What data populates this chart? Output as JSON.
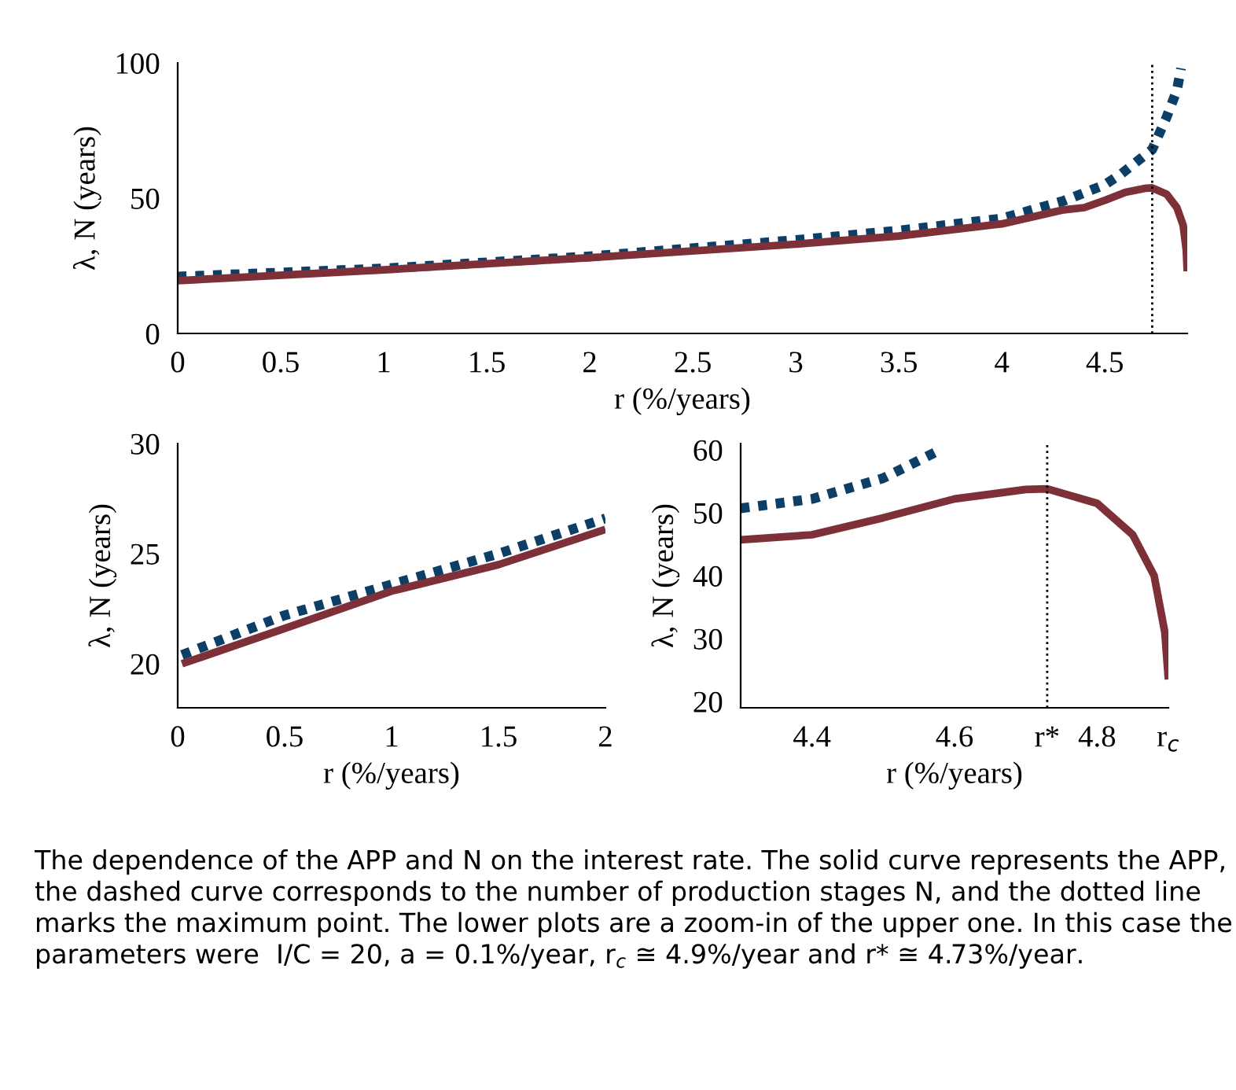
{
  "chart_data": [
    {
      "type": "line",
      "xlabel": "r (%/years)",
      "ylabel": "λ, N (years)",
      "xlim": [
        0,
        4.9
      ],
      "ylim": [
        0,
        100
      ],
      "xticks": [
        0,
        0.5,
        1,
        1.5,
        2,
        2.5,
        3,
        3.5,
        4,
        4.5
      ],
      "yticks": [
        0,
        50,
        100
      ],
      "grid": false,
      "legend": false,
      "series": [
        {
          "color": "#0d3f66",
          "line_style": "dotted",
          "x": [
            0,
            1,
            2,
            3,
            3.5,
            4,
            4.3,
            4.5,
            4.58,
            4.73,
            4.8,
            4.85,
            4.87
          ],
          "values": [
            21,
            24,
            28.5,
            34.5,
            38,
            42.5,
            49,
            55,
            59,
            68,
            80,
            90,
            98
          ]
        },
        {
          "color": "#7d3038",
          "line_style": "solid",
          "x": [
            0,
            1,
            2,
            3,
            3.5,
            4,
            4.3,
            4.4,
            4.5,
            4.6,
            4.7,
            4.73,
            4.8,
            4.85,
            4.88,
            4.895,
            4.9
          ],
          "values": [
            19.5,
            23.5,
            28,
            33,
            36,
            40.5,
            45.7,
            46.5,
            49.2,
            52.2,
            53.7,
            53.8,
            51.5,
            46.5,
            40,
            31,
            23
          ]
        }
      ],
      "ref_lines": [
        {
          "axis": "x",
          "value": 4.73,
          "color": "#000000",
          "line_style": "dotted"
        }
      ]
    },
    {
      "type": "line",
      "xlabel": "r (%/years)",
      "ylabel": "λ, N (years)",
      "xlim": [
        0,
        2
      ],
      "ylim": [
        18,
        30
      ],
      "xticks": [
        0,
        0.5,
        1,
        1.5,
        2
      ],
      "yticks": [
        20,
        25,
        30
      ],
      "grid": false,
      "legend": false,
      "series": [
        {
          "color": "#0d3f66",
          "line_style": "dotted",
          "x": [
            0.02,
            0.5,
            1,
            1.5,
            2
          ],
          "values": [
            20.4,
            22.2,
            23.6,
            25,
            26.6
          ]
        },
        {
          "color": "#7d3038",
          "line_style": "solid",
          "x": [
            0.02,
            0.5,
            1,
            1.5,
            2
          ],
          "values": [
            20,
            21.6,
            23.3,
            24.5,
            26.1
          ]
        }
      ]
    },
    {
      "type": "line",
      "xlabel": "r (%/years)",
      "ylabel": "λ, N (years)",
      "xlim": [
        4.3,
        4.9
      ],
      "ylim": [
        19,
        61
      ],
      "xticks": [
        4.4,
        4.6,
        {
          "value": 4.73,
          "label": "r*"
        },
        4.8,
        {
          "value": 4.9,
          "label": "r$_{c}$"
        }
      ],
      "yticks": [
        20,
        30,
        40,
        50,
        60
      ],
      "grid": false,
      "legend": false,
      "series": [
        {
          "color": "#0d3f66",
          "line_style": "dotted",
          "x": [
            4.3,
            4.4,
            4.5,
            4.58
          ],
          "values": [
            50.7,
            52.2,
            55.5,
            60
          ]
        },
        {
          "color": "#7d3038",
          "line_style": "solid",
          "x": [
            4.3,
            4.4,
            4.5,
            4.6,
            4.7,
            4.73,
            4.8,
            4.85,
            4.88,
            4.895,
            4.9
          ],
          "values": [
            45.7,
            46.5,
            49.2,
            52.2,
            53.7,
            53.8,
            51.5,
            46.5,
            40,
            31,
            23.5
          ]
        }
      ],
      "ref_lines": [
        {
          "axis": "x",
          "value": 4.73,
          "color": "#000000",
          "line_style": "dotted"
        }
      ],
      "annotations": [
        "The dependence of the APP and N on the interest rate. The solid curve represents the APP, the dashed curve corresponds to the number of production stages N, and the dotted line marks the maximum point. The lower plots are a zoom-in of the upper one. In this case the parameters were  I/C = 20, a = 0.1%/year, r$_{c}$ ≅ 4.9%/year and r* ≅ 4.73%/year."
      ]
    }
  ]
}
